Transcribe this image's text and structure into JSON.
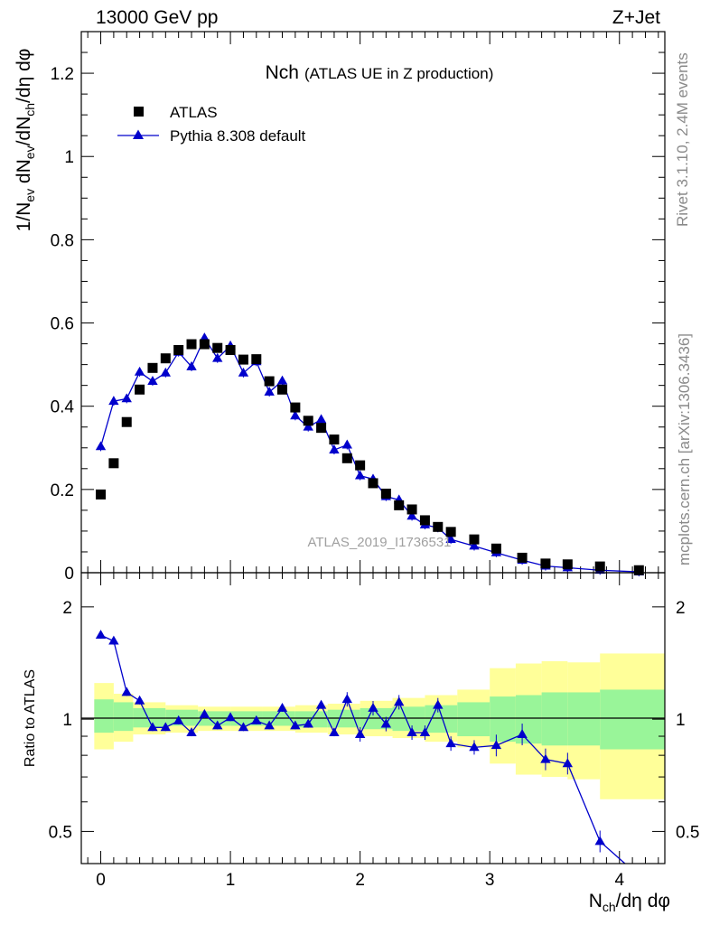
{
  "header": {
    "left": "13000 GeV pp",
    "right": "Z+Jet",
    "title_main": "Nch",
    "title_sub": "(ATLAS UE in Z production)",
    "watermark": "ATLAS_2019_I1736531",
    "side_top": "Rivet 3.1.10,  2.4M events",
    "side_bottom": "mcplots.cern.ch [arXiv:1306.3436]"
  },
  "colors": {
    "data": "#000000",
    "mc": "#0000cc",
    "band_stat": "#99f599",
    "band_total": "#ffff99"
  },
  "chart_data": [
    {
      "type": "scatter",
      "name": "main",
      "xlabel": "N_ch/dη dφ",
      "ylabel": "1/N_ev dN_ev/dN_ch/dη dφ",
      "xlim": [
        -0.15,
        4.35
      ],
      "ylim": [
        0,
        1.3
      ],
      "xticks": [
        "0",
        "1",
        "2",
        "3",
        "4"
      ],
      "yticks": [
        "0",
        "0.2",
        "0.4",
        "0.6",
        "0.8",
        "1",
        "1.2"
      ],
      "legend": "top-left",
      "series": [
        {
          "name": "ATLAS",
          "marker": "square",
          "points": [
            [
              0.0,
              0.188
            ],
            [
              0.1,
              0.263
            ],
            [
              0.2,
              0.362
            ],
            [
              0.3,
              0.44
            ],
            [
              0.4,
              0.492
            ],
            [
              0.5,
              0.515
            ],
            [
              0.6,
              0.535
            ],
            [
              0.7,
              0.549
            ],
            [
              0.8,
              0.549
            ],
            [
              0.9,
              0.54
            ],
            [
              1.0,
              0.535
            ],
            [
              1.1,
              0.512
            ],
            [
              1.2,
              0.513
            ],
            [
              1.3,
              0.46
            ],
            [
              1.4,
              0.44
            ],
            [
              1.5,
              0.397
            ],
            [
              1.6,
              0.365
            ],
            [
              1.7,
              0.348
            ],
            [
              1.8,
              0.32
            ],
            [
              1.9,
              0.275
            ],
            [
              2.0,
              0.258
            ],
            [
              2.1,
              0.215
            ],
            [
              2.2,
              0.19
            ],
            [
              2.3,
              0.162
            ],
            [
              2.4,
              0.152
            ],
            [
              2.5,
              0.126
            ],
            [
              2.6,
              0.11
            ],
            [
              2.7,
              0.098
            ],
            [
              2.88,
              0.08
            ],
            [
              3.05,
              0.058
            ],
            [
              3.25,
              0.036
            ],
            [
              3.43,
              0.022
            ],
            [
              3.6,
              0.02
            ],
            [
              3.85,
              0.015
            ],
            [
              4.15,
              0.006
            ]
          ]
        },
        {
          "name": "Pythia 8.308 default",
          "marker": "triangle",
          "points": [
            [
              0.0,
              0.303
            ],
            [
              0.1,
              0.412
            ],
            [
              0.2,
              0.418
            ],
            [
              0.3,
              0.482
            ],
            [
              0.4,
              0.46
            ],
            [
              0.5,
              0.48
            ],
            [
              0.6,
              0.53
            ],
            [
              0.7,
              0.495
            ],
            [
              0.8,
              0.564
            ],
            [
              0.9,
              0.515
            ],
            [
              1.0,
              0.545
            ],
            [
              1.1,
              0.48
            ],
            [
              1.2,
              0.507
            ],
            [
              1.3,
              0.434
            ],
            [
              1.4,
              0.461
            ],
            [
              1.5,
              0.377
            ],
            [
              1.6,
              0.35
            ],
            [
              1.7,
              0.368
            ],
            [
              1.8,
              0.295
            ],
            [
              1.9,
              0.307
            ],
            [
              2.0,
              0.233
            ],
            [
              2.1,
              0.225
            ],
            [
              2.2,
              0.183
            ],
            [
              2.3,
              0.175
            ],
            [
              2.4,
              0.136
            ],
            [
              2.5,
              0.115
            ],
            [
              2.6,
              0.108
            ],
            [
              2.7,
              0.08
            ],
            [
              2.88,
              0.064
            ],
            [
              3.05,
              0.048
            ],
            [
              3.25,
              0.03
            ],
            [
              3.43,
              0.016
            ],
            [
              3.6,
              0.012
            ],
            [
              3.85,
              0.006
            ],
            [
              4.15,
              0.002
            ]
          ]
        }
      ]
    },
    {
      "type": "line",
      "name": "ratio",
      "xlabel": "N_ch/dη dφ",
      "ylabel": "Ratio to ATLAS",
      "xlim": [
        -0.15,
        4.35
      ],
      "ylim": [
        0.41,
        2.47
      ],
      "scale": "log",
      "xticks": [
        "0",
        "1",
        "2",
        "3",
        "4"
      ],
      "yticks": [
        "0.5",
        "1",
        "2"
      ],
      "reference_line": 1,
      "series": [
        {
          "name": "Pythia 8.308 default",
          "points": [
            [
              0.0,
              1.68
            ],
            [
              0.1,
              1.62
            ],
            [
              0.2,
              1.18
            ],
            [
              0.3,
              1.12
            ],
            [
              0.4,
              0.95
            ],
            [
              0.5,
              0.95
            ],
            [
              0.6,
              0.99
            ],
            [
              0.7,
              0.92
            ],
            [
              0.8,
              1.03
            ],
            [
              0.9,
              0.96
            ],
            [
              1.0,
              1.01
            ],
            [
              1.1,
              0.95
            ],
            [
              1.2,
              0.99
            ],
            [
              1.3,
              0.96
            ],
            [
              1.4,
              1.07
            ],
            [
              1.5,
              0.96
            ],
            [
              1.6,
              0.97
            ],
            [
              1.7,
              1.09
            ],
            [
              1.8,
              0.92
            ],
            [
              1.9,
              1.13
            ],
            [
              2.0,
              0.91
            ],
            [
              2.1,
              1.07
            ],
            [
              2.2,
              0.97
            ],
            [
              2.3,
              1.11
            ],
            [
              2.4,
              0.92
            ],
            [
              2.5,
              0.92
            ],
            [
              2.6,
              1.09
            ],
            [
              2.7,
              0.86
            ],
            [
              2.88,
              0.84
            ],
            [
              3.05,
              0.85
            ],
            [
              3.25,
              0.91
            ],
            [
              3.43,
              0.78
            ],
            [
              3.6,
              0.76
            ],
            [
              3.85,
              0.47
            ],
            [
              4.15,
              0.38
            ]
          ]
        }
      ],
      "bands": [
        [
          -0.05,
          0.1,
          0.92,
          1.13,
          0.83,
          1.25
        ],
        [
          0.1,
          0.25,
          0.93,
          1.11,
          0.87,
          1.17
        ],
        [
          0.25,
          0.5,
          0.95,
          1.07,
          0.91,
          1.11
        ],
        [
          0.5,
          0.75,
          0.96,
          1.06,
          0.92,
          1.09
        ],
        [
          0.75,
          1.0,
          0.96,
          1.05,
          0.93,
          1.08
        ],
        [
          1.0,
          1.25,
          0.96,
          1.05,
          0.93,
          1.08
        ],
        [
          1.25,
          1.5,
          0.96,
          1.05,
          0.93,
          1.08
        ],
        [
          1.5,
          1.75,
          0.95,
          1.05,
          0.92,
          1.09
        ],
        [
          1.75,
          2.0,
          0.95,
          1.06,
          0.91,
          1.1
        ],
        [
          2.0,
          2.25,
          0.94,
          1.07,
          0.9,
          1.12
        ],
        [
          2.25,
          2.5,
          0.93,
          1.08,
          0.89,
          1.14
        ],
        [
          2.5,
          2.75,
          0.92,
          1.09,
          0.87,
          1.16
        ],
        [
          2.75,
          3.0,
          0.9,
          1.11,
          0.84,
          1.2
        ],
        [
          3.0,
          3.2,
          0.87,
          1.15,
          0.76,
          1.37
        ],
        [
          3.2,
          3.4,
          0.86,
          1.16,
          0.71,
          1.41
        ],
        [
          3.4,
          3.6,
          0.85,
          1.18,
          0.7,
          1.43
        ],
        [
          3.6,
          3.85,
          0.85,
          1.18,
          0.69,
          1.42
        ],
        [
          3.85,
          4.35,
          0.83,
          1.2,
          0.61,
          1.5
        ]
      ]
    }
  ]
}
